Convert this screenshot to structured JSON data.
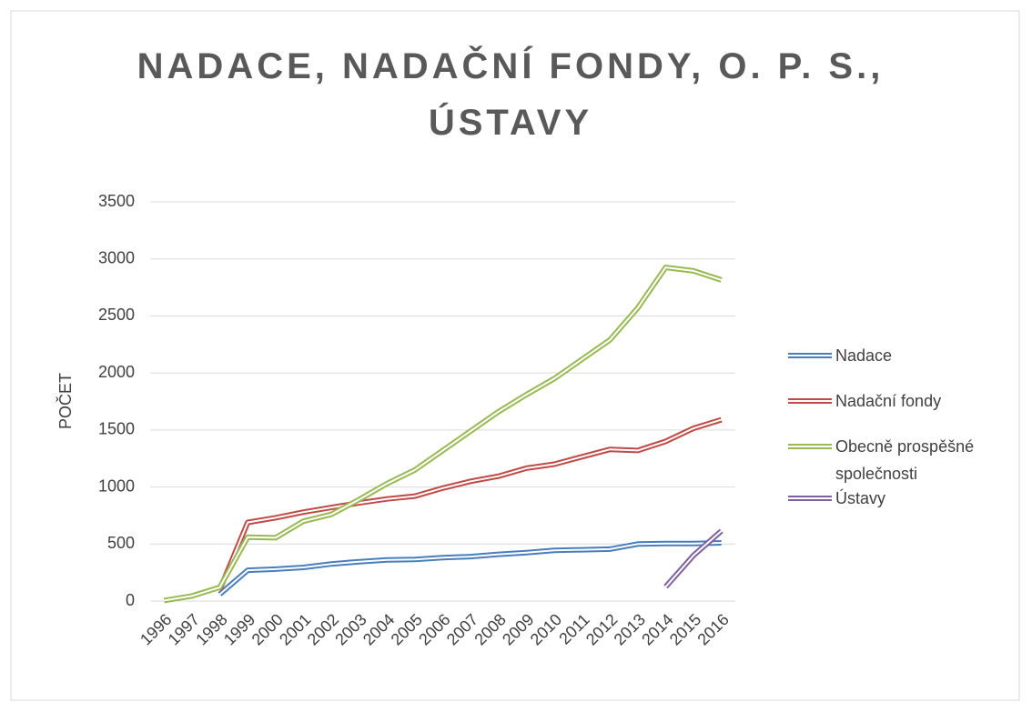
{
  "chart_data": {
    "type": "line",
    "title": "NADACE, NADAČNÍ FONDY, O. P. S., ÚSTAVY",
    "y_label": "POČET",
    "categories": [
      "1996",
      "1997",
      "1998",
      "1999",
      "2000",
      "2001",
      "2002",
      "2003",
      "2004",
      "2005",
      "2006",
      "2007",
      "2008",
      "2009",
      "2010",
      "2011",
      "2012",
      "2013",
      "2014",
      "2015",
      "2016"
    ],
    "series": [
      {
        "name": "Nadace",
        "color": "#4a7ebb",
        "values": [
          null,
          null,
          60,
          270,
          280,
          295,
          325,
          345,
          360,
          365,
          380,
          390,
          410,
          425,
          445,
          450,
          455,
          500,
          505,
          505,
          510
        ]
      },
      {
        "name": "Nadační fondy",
        "color": "#be4b48",
        "values": [
          null,
          null,
          100,
          690,
          730,
          780,
          820,
          860,
          895,
          920,
          990,
          1050,
          1095,
          1165,
          1200,
          1265,
          1330,
          1320,
          1400,
          1515,
          1590
        ]
      },
      {
        "name": "Obecně prospěšné společnosti",
        "color": "#98b954",
        "values": [
          5,
          45,
          120,
          560,
          555,
          700,
          760,
          890,
          1030,
          1150,
          1320,
          1490,
          1660,
          1810,
          1950,
          2120,
          2290,
          2570,
          2925,
          2895,
          2815
        ]
      },
      {
        "name": "Ústavy",
        "color": "#7d60a0",
        "values": [
          null,
          null,
          null,
          null,
          null,
          null,
          null,
          null,
          null,
          null,
          null,
          null,
          null,
          null,
          null,
          null,
          null,
          null,
          125,
          400,
          615
        ]
      }
    ],
    "ylim": [
      0,
      3500
    ],
    "yticks": [
      0,
      500,
      1000,
      1500,
      2000,
      2500,
      3000,
      3500
    ],
    "grid": true,
    "legend": "right"
  }
}
